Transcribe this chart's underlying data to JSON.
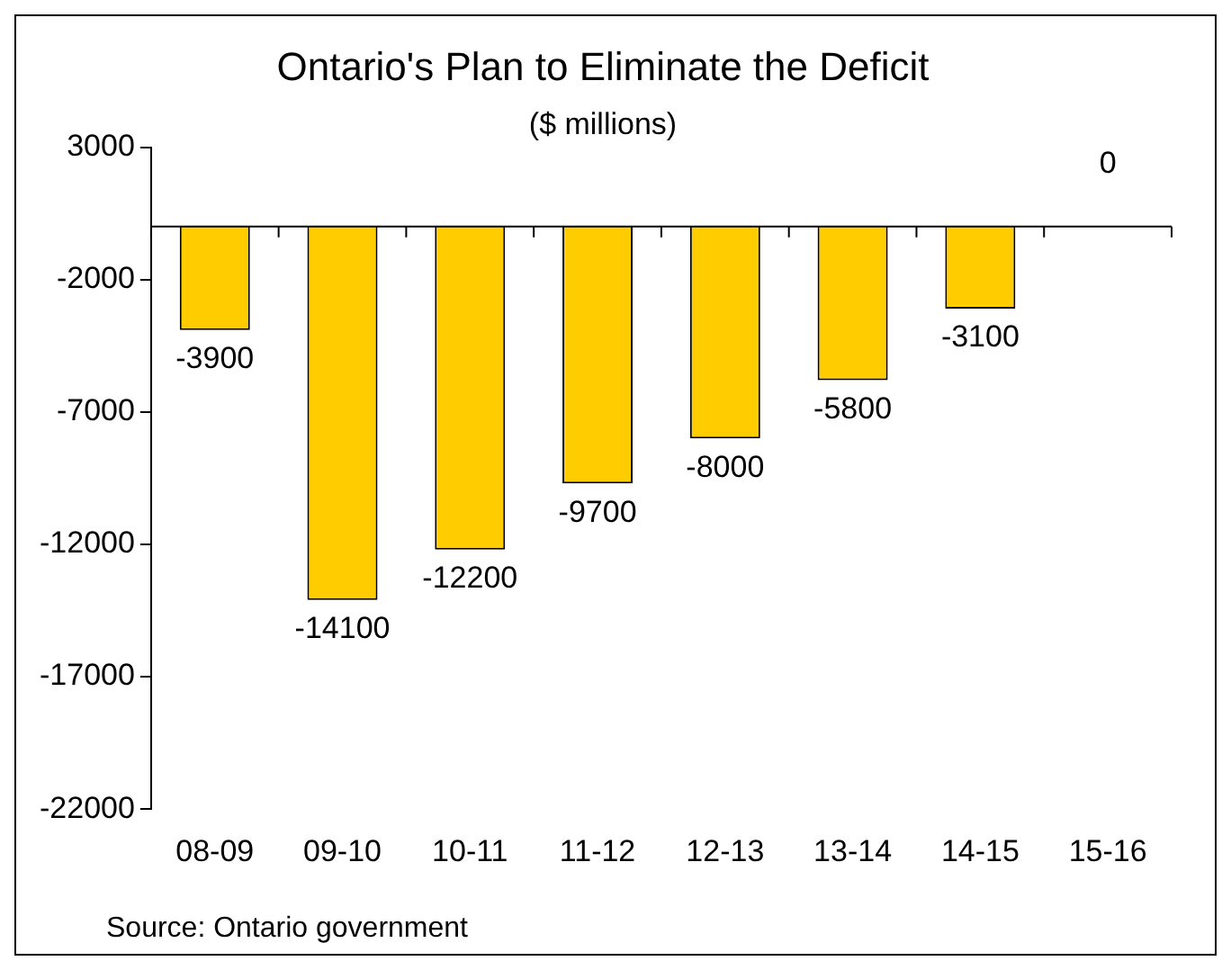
{
  "chart_data": {
    "type": "bar",
    "title": "Ontario's Plan to Eliminate the Deficit",
    "subtitle": "($ millions)",
    "categories": [
      "08-09",
      "09-10",
      "10-11",
      "11-12",
      "12-13",
      "13-14",
      "14-15",
      "15-16"
    ],
    "values": [
      -3900,
      -14100,
      -12200,
      -9700,
      -8000,
      -5800,
      -3100,
      0
    ],
    "color": "#ffcc00",
    "ylim": [
      -22000,
      3000
    ],
    "yticks": [
      3000,
      -2000,
      -7000,
      -12000,
      -17000,
      -22000
    ],
    "grid": false,
    "data_labels": true,
    "annotations": [
      "Source: Ontario government"
    ]
  }
}
